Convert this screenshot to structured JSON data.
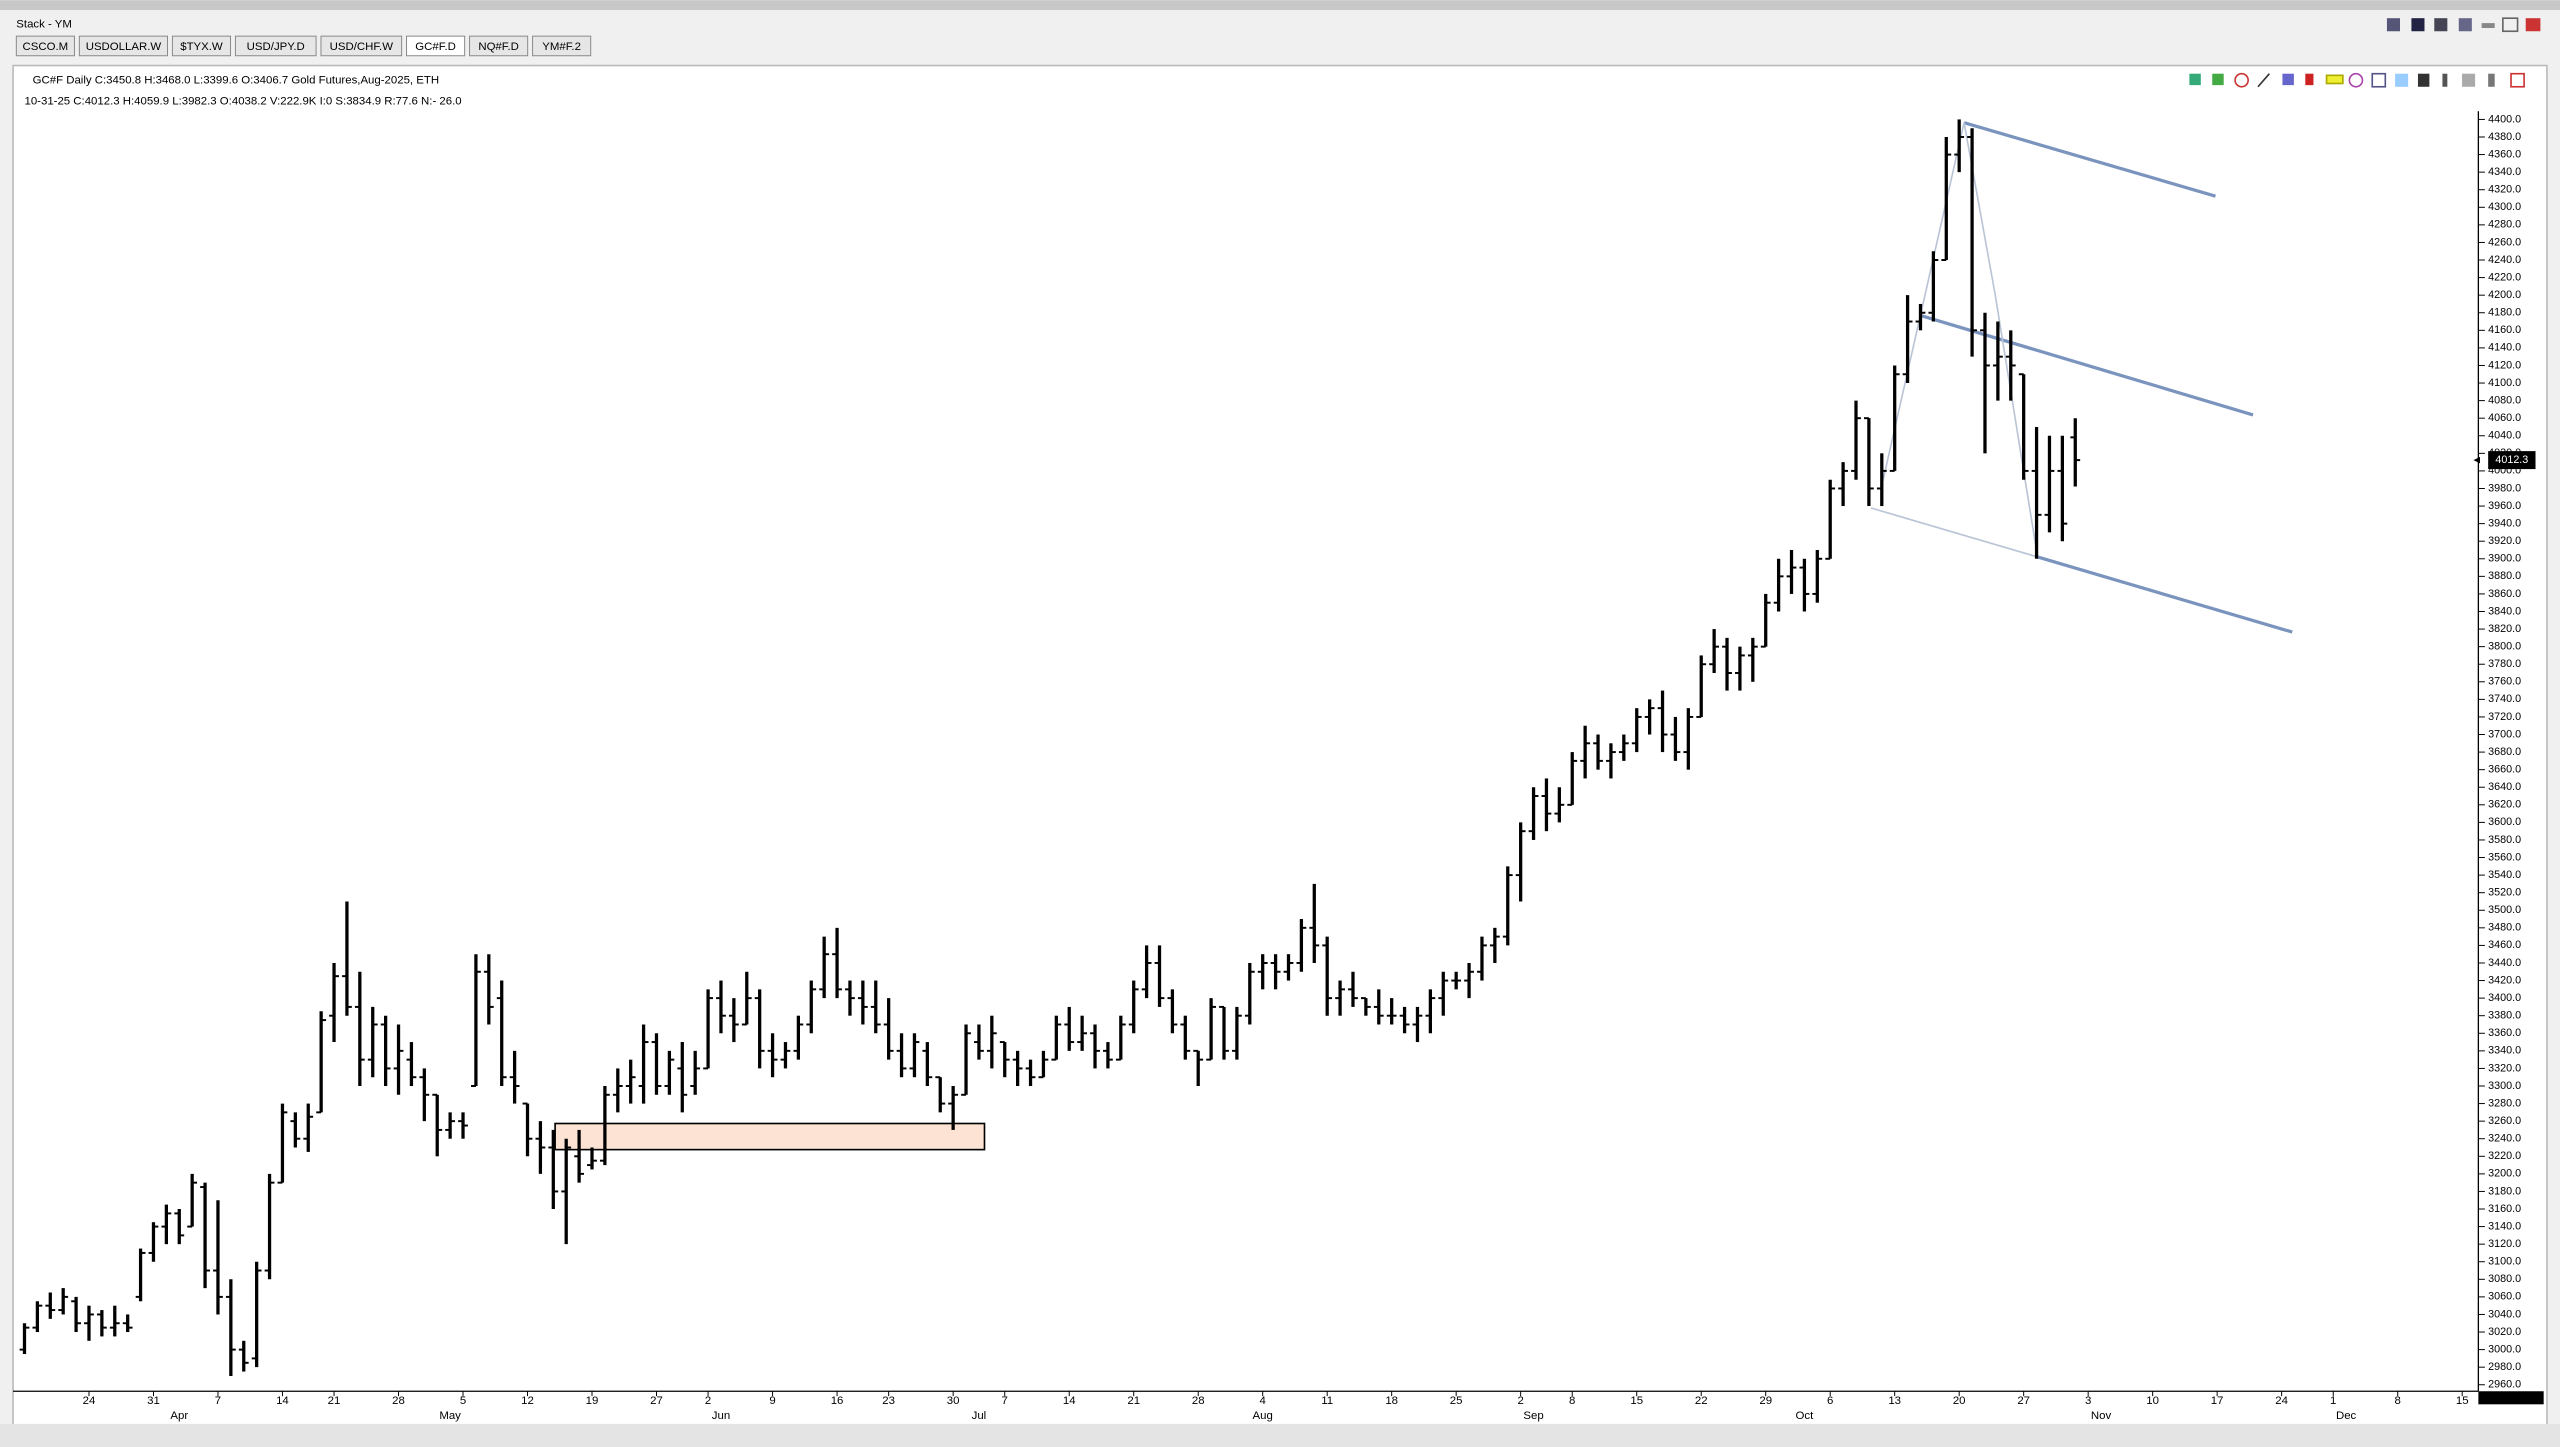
{
  "window": {
    "title": "Stack - YM",
    "tabs": [
      "CSCO.M",
      "USDOLLAR.W",
      "$TYX.W",
      "USD/JPY.D",
      "USD/CHF.W",
      "GC#F.D",
      "NQ#F.D",
      "YM#F.2"
    ],
    "active_tab": 5
  },
  "header": {
    "line1": "GC#F  Daily  C:3450.8  H:3468.0  L:3399.6  O:3406.7  Gold Futures,Aug-2025, ETH",
    "line2": "10-31-25  C:4012.3  H:4059.9  L:3982.3  O:4038.2  V:222.9K  I:0  S:3834.9  R:77.6  N:- 26.0"
  },
  "chart_data": {
    "type": "ohlc",
    "color": "#000000",
    "categories": [
      null,
      null,
      null,
      null,
      null,
      "24",
      null,
      null,
      null,
      null,
      "31",
      null,
      null,
      null,
      null,
      "7",
      null,
      null,
      null,
      null,
      "14",
      null,
      null,
      null,
      "21",
      null,
      null,
      null,
      null,
      "28",
      null,
      null,
      null,
      null,
      "5",
      null,
      null,
      null,
      null,
      "12",
      null,
      null,
      null,
      null,
      "19",
      null,
      null,
      null,
      null,
      "27",
      null,
      null,
      null,
      "2",
      null,
      null,
      null,
      null,
      "9",
      null,
      null,
      null,
      null,
      "16",
      null,
      null,
      null,
      "23",
      null,
      null,
      null,
      null,
      "30",
      null,
      null,
      null,
      "7",
      null,
      null,
      null,
      null,
      "14",
      null,
      null,
      null,
      null,
      "21",
      null,
      null,
      null,
      null,
      "28",
      null,
      null,
      null,
      null,
      "4",
      null,
      null,
      null,
      null,
      "11",
      null,
      null,
      null,
      null,
      "18",
      null,
      null,
      null,
      null,
      "25",
      null,
      null,
      null,
      null,
      "2",
      null,
      null,
      null,
      "8",
      null,
      null,
      null,
      null,
      "15",
      null,
      null,
      null,
      null,
      "22",
      null,
      null,
      null,
      null,
      "29",
      null,
      null,
      null,
      null,
      "6",
      null,
      null,
      null,
      null,
      "13",
      null,
      null,
      null,
      null,
      "20",
      null,
      null,
      null,
      null,
      "27",
      null,
      null,
      null,
      null,
      "3",
      null,
      null,
      null,
      null,
      "10",
      null,
      null,
      null,
      null,
      "17",
      null,
      null,
      null,
      null,
      "24",
      null,
      null,
      null,
      "1",
      null,
      null,
      null,
      null,
      "8",
      null,
      null,
      null,
      null,
      "15"
    ],
    "month_labels": [
      null,
      null,
      null,
      null,
      null,
      null,
      null,
      null,
      null,
      null,
      null,
      null,
      "Apr",
      null,
      null,
      null,
      null,
      null,
      null,
      null,
      null,
      null,
      null,
      null,
      null,
      null,
      null,
      null,
      null,
      null,
      null,
      null,
      null,
      "May",
      null,
      null,
      null,
      null,
      null,
      null,
      null,
      null,
      null,
      null,
      null,
      null,
      null,
      null,
      null,
      null,
      null,
      null,
      null,
      null,
      "Jun",
      null,
      null,
      null,
      null,
      null,
      null,
      null,
      null,
      null,
      null,
      null,
      null,
      null,
      null,
      null,
      null,
      null,
      null,
      null,
      "Jul",
      null,
      null,
      null,
      null,
      null,
      null,
      null,
      null,
      null,
      null,
      null,
      null,
      null,
      null,
      null,
      null,
      null,
      null,
      null,
      null,
      null,
      "Aug",
      null,
      null,
      null,
      null,
      null,
      null,
      null,
      null,
      null,
      null,
      null,
      null,
      null,
      null,
      null,
      null,
      null,
      null,
      null,
      null,
      "Sep",
      null,
      null,
      null,
      null,
      null,
      null,
      null,
      null,
      null,
      null,
      null,
      null,
      null,
      null,
      null,
      null,
      null,
      null,
      null,
      null,
      "Oct",
      null,
      null,
      null,
      null,
      null,
      null,
      null,
      null,
      null,
      null,
      null,
      null,
      null,
      null,
      null,
      null,
      null,
      null,
      null,
      null,
      null,
      null,
      "Nov",
      null,
      null,
      null,
      null,
      null,
      null,
      null,
      null,
      null,
      null,
      null,
      null,
      null,
      null,
      null,
      null,
      null,
      null,
      "Dec",
      null,
      null,
      null,
      null,
      null,
      null,
      null,
      null,
      null
    ],
    "open": [
      3000,
      3025,
      3050,
      3045,
      3055,
      3030,
      3040,
      3025,
      3030,
      3060,
      3110,
      3140,
      3155,
      3140,
      3185,
      3090,
      3060,
      3000,
      2990,
      3090,
      3190,
      3260,
      3240,
      3270,
      3380,
      3425,
      3390,
      3330,
      3370,
      3320,
      3330,
      3310,
      3290,
      3250,
      3260,
      3300,
      3430,
      3400,
      3310,
      3280,
      3240,
      3230,
      3180,
      3220,
      3210,
      3215,
      3290,
      3300,
      3300,
      3350,
      3300,
      3320,
      3300,
      3320,
      3400,
      3380,
      3370,
      3400,
      3340,
      3330,
      3340,
      3370,
      3410,
      3450,
      3410,
      3400,
      3390,
      3370,
      3340,
      3320,
      3340,
      3310,
      3280,
      3290,
      3350,
      3340,
      3350,
      3330,
      3320,
      3310,
      3330,
      3370,
      3350,
      3360,
      3340,
      3330,
      3370,
      3410,
      3440,
      3400,
      3370,
      3340,
      3330,
      3390,
      3340,
      3380,
      3430,
      3440,
      3430,
      3440,
      3480,
      3460,
      3400,
      3410,
      3400,
      3390,
      3380,
      3380,
      3370,
      3380,
      3400,
      3420,
      3420,
      3430,
      3460,
      3470,
      3540,
      3590,
      3630,
      3610,
      3620,
      3670,
      3690,
      3670,
      3680,
      3690,
      3720,
      3730,
      3700,
      3680,
      3720,
      3780,
      3800,
      3770,
      3790,
      3800,
      3850,
      3880,
      3890,
      3860,
      3900,
      3980,
      4000,
      4060,
      3980,
      4000,
      4110,
      4170,
      4180,
      4240,
      4360,
      4380,
      4160,
      4120,
      4130,
      4110,
      4000,
      3950,
      4000,
      4038.2,
      null,
      null,
      null,
      null,
      null,
      null,
      null,
      null,
      null,
      null,
      null,
      null,
      null,
      null,
      null,
      null,
      null,
      null,
      null,
      null,
      null,
      null,
      null,
      null,
      null,
      null,
      null,
      null,
      null,
      null
    ],
    "high": [
      3030,
      3055,
      3065,
      3070,
      3060,
      3050,
      3045,
      3050,
      3040,
      3115,
      3145,
      3165,
      3160,
      3200,
      3190,
      3170,
      3080,
      3010,
      3100,
      3200,
      3280,
      3270,
      3280,
      3385,
      3440,
      3510,
      3430,
      3390,
      3380,
      3370,
      3350,
      3320,
      3290,
      3270,
      3270,
      3450,
      3450,
      3420,
      3340,
      3280,
      3260,
      3250,
      3240,
      3250,
      3230,
      3300,
      3320,
      3330,
      3370,
      3360,
      3340,
      3350,
      3340,
      3410,
      3420,
      3400,
      3430,
      3410,
      3360,
      3350,
      3380,
      3420,
      3470,
      3480,
      3420,
      3420,
      3420,
      3400,
      3360,
      3360,
      3350,
      3310,
      3300,
      3370,
      3370,
      3380,
      3350,
      3340,
      3330,
      3340,
      3380,
      3390,
      3380,
      3370,
      3350,
      3380,
      3420,
      3460,
      3460,
      3410,
      3380,
      3340,
      3400,
      3390,
      3390,
      3440,
      3450,
      3450,
      3450,
      3490,
      3530,
      3470,
      3420,
      3430,
      3400,
      3410,
      3400,
      3390,
      3390,
      3410,
      3430,
      3430,
      3440,
      3470,
      3480,
      3550,
      3600,
      3640,
      3650,
      3640,
      3680,
      3710,
      3700,
      3690,
      3700,
      3730,
      3740,
      3750,
      3720,
      3730,
      3790,
      3820,
      3810,
      3800,
      3810,
      3860,
      3900,
      3910,
      3900,
      3910,
      3990,
      4010,
      4080,
      4060,
      4020,
      4120,
      4200,
      4190,
      4250,
      4380,
      4400,
      4390,
      4180,
      4170,
      4160,
      4110,
      4050,
      4040,
      4040,
      4059.9,
      null,
      null,
      null,
      null,
      null,
      null,
      null,
      null,
      null,
      null,
      null,
      null,
      null,
      null,
      null,
      null,
      null,
      null,
      null,
      null,
      null,
      null,
      null,
      null,
      null,
      null,
      null,
      null,
      null,
      null
    ],
    "low": [
      2995,
      3020,
      3035,
      3040,
      3020,
      3010,
      3015,
      3015,
      3020,
      3055,
      3100,
      3120,
      3120,
      3140,
      3070,
      3040,
      2970,
      2975,
      2980,
      3080,
      3190,
      3230,
      3225,
      3270,
      3350,
      3380,
      3300,
      3310,
      3300,
      3290,
      3300,
      3260,
      3220,
      3240,
      3240,
      3300,
      3370,
      3300,
      3280,
      3220,
      3200,
      3160,
      3120,
      3190,
      3205,
      3210,
      3270,
      3280,
      3280,
      3290,
      3290,
      3270,
      3290,
      3320,
      3360,
      3350,
      3370,
      3320,
      3310,
      3320,
      3330,
      3360,
      3400,
      3400,
      3380,
      3370,
      3360,
      3330,
      3310,
      3310,
      3300,
      3270,
      3250,
      3290,
      3330,
      3320,
      3310,
      3300,
      3300,
      3310,
      3330,
      3340,
      3340,
      3320,
      3320,
      3330,
      3360,
      3400,
      3390,
      3360,
      3330,
      3300,
      3330,
      3330,
      3330,
      3370,
      3410,
      3410,
      3420,
      3430,
      3440,
      3380,
      3380,
      3390,
      3380,
      3370,
      3370,
      3360,
      3350,
      3360,
      3380,
      3410,
      3400,
      3420,
      3440,
      3460,
      3510,
      3580,
      3590,
      3600,
      3620,
      3650,
      3660,
      3650,
      3670,
      3680,
      3700,
      3680,
      3670,
      3660,
      3720,
      3770,
      3750,
      3750,
      3760,
      3800,
      3840,
      3860,
      3840,
      3850,
      3900,
      3960,
      3990,
      3960,
      3960,
      4000,
      4100,
      4160,
      4170,
      4240,
      4340,
      4130,
      4020,
      4080,
      4080,
      3990,
      3900,
      3930,
      3920,
      3982.3,
      null,
      null,
      null,
      null,
      null,
      null,
      null,
      null,
      null,
      null,
      null,
      null,
      null,
      null,
      null,
      null,
      null,
      null,
      null,
      null,
      null,
      null,
      null,
      null,
      null,
      null,
      null,
      null,
      null,
      null
    ],
    "close": [
      3025,
      3050,
      3045,
      3060,
      3030,
      3040,
      3025,
      3030,
      3025,
      3110,
      3140,
      3155,
      3130,
      3190,
      3090,
      3060,
      3000,
      2985,
      3090,
      3190,
      3270,
      3240,
      3265,
      3375,
      3425,
      3390,
      3330,
      3370,
      3320,
      3340,
      3310,
      3290,
      3250,
      3260,
      3255,
      3430,
      3390,
      3310,
      3300,
      3240,
      3230,
      3180,
      3230,
      3200,
      3215,
      3290,
      3300,
      3310,
      3350,
      3300,
      3330,
      3290,
      3320,
      3400,
      3380,
      3370,
      3400,
      3340,
      3330,
      3340,
      3370,
      3410,
      3450,
      3410,
      3400,
      3390,
      3370,
      3340,
      3320,
      3350,
      3310,
      3280,
      3290,
      3360,
      3340,
      3360,
      3330,
      3320,
      3310,
      3330,
      3370,
      3350,
      3360,
      3340,
      3330,
      3370,
      3410,
      3440,
      3400,
      3370,
      3340,
      3330,
      3390,
      3340,
      3380,
      3430,
      3440,
      3430,
      3440,
      3480,
      3460,
      3400,
      3410,
      3400,
      3390,
      3380,
      3380,
      3370,
      3380,
      3400,
      3420,
      3420,
      3430,
      3460,
      3470,
      3540,
      3590,
      3630,
      3610,
      3620,
      3670,
      3690,
      3670,
      3680,
      3690,
      3720,
      3730,
      3700,
      3680,
      3720,
      3780,
      3800,
      3770,
      3790,
      3800,
      3850,
      3880,
      3890,
      3860,
      3900,
      3980,
      4000,
      4060,
      3980,
      4000,
      4110,
      4170,
      4180,
      4240,
      4360,
      4380,
      4160,
      4120,
      4130,
      4120,
      4000,
      3950,
      4000,
      3940,
      4012.3,
      null,
      null,
      null,
      null,
      null,
      null,
      null,
      null,
      null,
      null,
      null,
      null,
      null,
      null,
      null,
      null,
      null,
      null,
      null,
      null,
      null,
      null,
      null,
      null,
      null,
      null,
      null,
      null,
      null,
      null
    ],
    "ylim": [
      2952.6,
      4409.3
    ],
    "yticks": [
      {
        "value": 2960,
        "label": "2960.0"
      },
      {
        "value": 2980,
        "label": "2980.0"
      },
      {
        "value": 3000,
        "label": "3000.0"
      },
      {
        "value": 3020,
        "label": "3020.0"
      },
      {
        "value": 3040,
        "label": "3040.0"
      },
      {
        "value": 3060,
        "label": "3060.0"
      },
      {
        "value": 3080,
        "label": "3080.0"
      },
      {
        "value": 3100,
        "label": "3100.0"
      },
      {
        "value": 3120,
        "label": "3120.0"
      },
      {
        "value": 3140,
        "label": "3140.0"
      },
      {
        "value": 3160,
        "label": "3160.0"
      },
      {
        "value": 3180,
        "label": "3180.0"
      },
      {
        "value": 3200,
        "label": "3200.0"
      },
      {
        "value": 3220,
        "label": "3220.0"
      },
      {
        "value": 3240,
        "label": "3240.0"
      },
      {
        "value": 3260,
        "label": "3260.0"
      },
      {
        "value": 3280,
        "label": "3280.0"
      },
      {
        "value": 3300,
        "label": "3300.0"
      },
      {
        "value": 3320,
        "label": "3320.0"
      },
      {
        "value": 3340,
        "label": "3340.0"
      },
      {
        "value": 3360,
        "label": "3360.0"
      },
      {
        "value": 3380,
        "label": "3380.0"
      },
      {
        "value": 3400,
        "label": "3400.0"
      },
      {
        "value": 3420,
        "label": "3420.0"
      },
      {
        "value": 3440,
        "label": "3440.0"
      },
      {
        "value": 3460,
        "label": "3460.0"
      },
      {
        "value": 3480,
        "label": "3480.0"
      },
      {
        "value": 3500,
        "label": "3500.0"
      },
      {
        "value": 3520,
        "label": "3520.0"
      },
      {
        "value": 3540,
        "label": "3540.0"
      },
      {
        "value": 3560,
        "label": "3560.0"
      },
      {
        "value": 3580,
        "label": "3580.0"
      },
      {
        "value": 3600,
        "label": "3600.0"
      },
      {
        "value": 3620,
        "label": "3620.0"
      },
      {
        "value": 3640,
        "label": "3640.0"
      },
      {
        "value": 3660,
        "label": "3660.0"
      },
      {
        "value": 3680,
        "label": "3680.0"
      },
      {
        "value": 3700,
        "label": "3700.0"
      },
      {
        "value": 3720,
        "label": "3720.0"
      },
      {
        "value": 3740,
        "label": "3740.0"
      },
      {
        "value": 3760,
        "label": "3760.0"
      },
      {
        "value": 3780,
        "label": "3780.0"
      },
      {
        "value": 3800,
        "label": "3800.0"
      },
      {
        "value": 3820,
        "label": "3820.0"
      },
      {
        "value": 3840,
        "label": "3840.0"
      },
      {
        "value": 3860,
        "label": "3860.0"
      },
      {
        "value": 3880,
        "label": "3880.0"
      },
      {
        "value": 3900,
        "label": "3900.0"
      },
      {
        "value": 3920,
        "label": "3920.0"
      },
      {
        "value": 3940,
        "label": "3940.0"
      },
      {
        "value": 3960,
        "label": "3960.0"
      },
      {
        "value": 3980,
        "label": "3980.0"
      },
      {
        "value": 4000,
        "label": "4000.0"
      },
      {
        "value": 4020,
        "label": "4020.0"
      },
      {
        "value": 4040,
        "label": "4040.0"
      },
      {
        "value": 4060,
        "label": "4060.0"
      },
      {
        "value": 4080,
        "label": "4080.0"
      },
      {
        "value": 4100,
        "label": "4100.0"
      },
      {
        "value": 4120,
        "label": "4120.0"
      },
      {
        "value": 4140,
        "label": "4140.0"
      },
      {
        "value": 4160,
        "label": "4160.0"
      },
      {
        "value": 4180,
        "label": "4180.0"
      },
      {
        "value": 4200,
        "label": "4200.0"
      },
      {
        "value": 4220,
        "label": "4220.0"
      },
      {
        "value": 4240,
        "label": "4240.0"
      },
      {
        "value": 4260,
        "label": "4260.0"
      },
      {
        "value": 4280,
        "label": "4280.0"
      },
      {
        "value": 4300,
        "label": "4300.0"
      },
      {
        "value": 4320,
        "label": "4320.0"
      },
      {
        "value": 4340,
        "label": "4340.0"
      },
      {
        "value": 4360,
        "label": "4360.0"
      },
      {
        "value": 4380,
        "label": "4380.0"
      },
      {
        "value": 4400,
        "label": "4400.0"
      }
    ]
  }
}
